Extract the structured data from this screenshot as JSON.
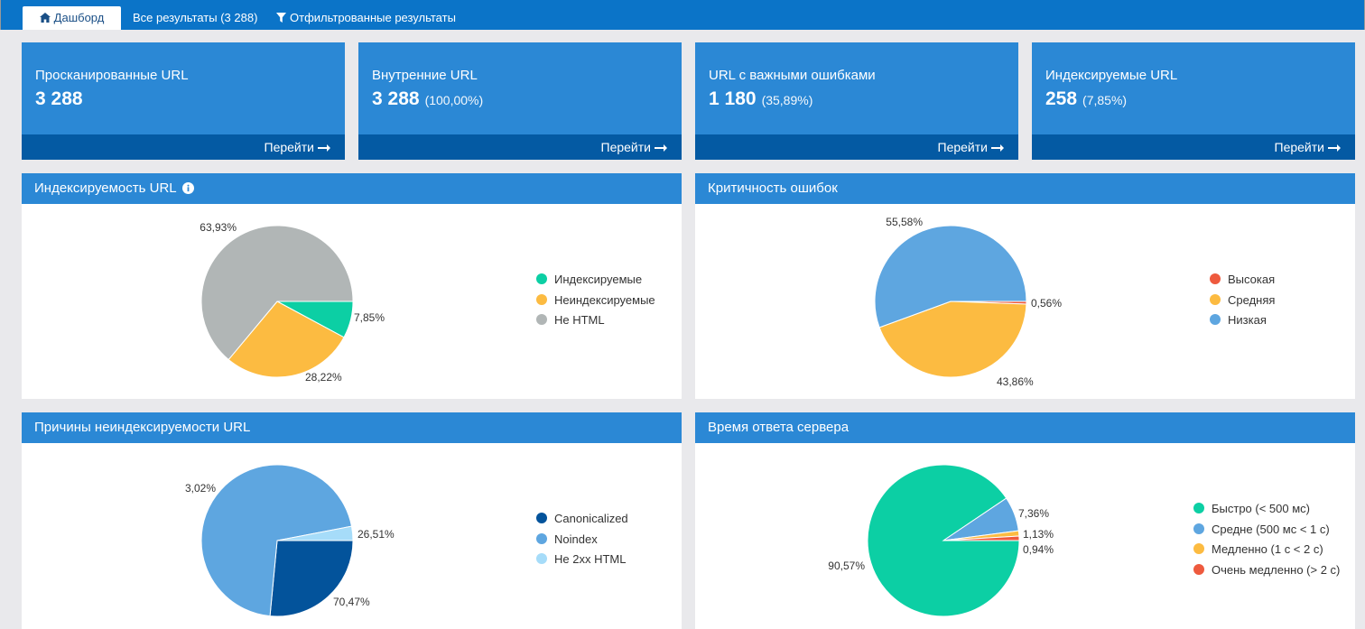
{
  "tabs": [
    {
      "label": "Дашборд",
      "icon": "home-icon",
      "active": true
    },
    {
      "label": "Все результаты (3 288)",
      "active": false
    },
    {
      "label": "Отфильтрованные результаты",
      "icon": "filter-icon",
      "active": false
    }
  ],
  "kpis": [
    {
      "label": "Просканированные URL",
      "value": "3 288",
      "pct": "",
      "link": "Перейти"
    },
    {
      "label": "Внутренние URL",
      "value": "3 288",
      "pct": "(100,00%)",
      "link": "Перейти"
    },
    {
      "label": "URL с важными ошибками",
      "value": "1 180",
      "pct": "(35,89%)",
      "link": "Перейти"
    },
    {
      "label": "Индексируемые URL",
      "value": "258",
      "pct": "(7,85%)",
      "link": "Перейти"
    }
  ],
  "colors": {
    "header_blue": "#0b74c8",
    "card_blue": "#2b88d5",
    "card_footer": "#045aa3"
  },
  "chart_data": [
    {
      "type": "pie",
      "title": "Индексируемость URL",
      "info_icon": "info-icon",
      "slices": [
        {
          "name": "Индексируемые",
          "value": 7.85,
          "label": "7,85%",
          "color": "#0ccfa4"
        },
        {
          "name": "Неиндексируемые",
          "value": 28.22,
          "label": "28,22%",
          "color": "#fcbb41"
        },
        {
          "name": "Не HTML",
          "value": 63.93,
          "label": "63,93%",
          "color": "#b1b6b6"
        }
      ],
      "legend_position": "right"
    },
    {
      "type": "pie",
      "title": "Критичность ошибок",
      "slices": [
        {
          "name": "Высокая",
          "value": 0.56,
          "label": "0,56%",
          "color": "#ee5a3e"
        },
        {
          "name": "Средняя",
          "value": 43.86,
          "label": "43,86%",
          "color": "#fcbb41"
        },
        {
          "name": "Низкая",
          "value": 55.58,
          "label": "55,58%",
          "color": "#5ea6e0"
        }
      ],
      "legend_position": "right"
    },
    {
      "type": "pie",
      "title": "Причины неиндексируемости URL",
      "slices": [
        {
          "name": "Canonicalized",
          "value": 26.51,
          "label": "26,51%",
          "color": "#03539b"
        },
        {
          "name": "Noindex",
          "value": 70.47,
          "label": "70,47%",
          "color": "#5ea6e0"
        },
        {
          "name": "Не 2xx HTML",
          "value": 3.02,
          "label": "3,02%",
          "color": "#a6dcf9"
        }
      ],
      "legend_position": "right"
    },
    {
      "type": "pie",
      "title": "Время ответа сервера",
      "slices": [
        {
          "name": "Быстро (< 500 мс)",
          "value": 90.57,
          "label": "90,57%",
          "color": "#0ccfa4"
        },
        {
          "name": "Средне (500 мс < 1 с)",
          "value": 7.36,
          "label": "7,36%",
          "color": "#5ea6e0"
        },
        {
          "name": "Медленно (1 с < 2 с)",
          "value": 1.13,
          "label": "1,13%",
          "color": "#fcbb41"
        },
        {
          "name": "Очень медленно (> 2 с)",
          "value": 0.94,
          "label": "0,94%",
          "color": "#ee5a3e"
        }
      ],
      "legend_position": "right"
    }
  ]
}
